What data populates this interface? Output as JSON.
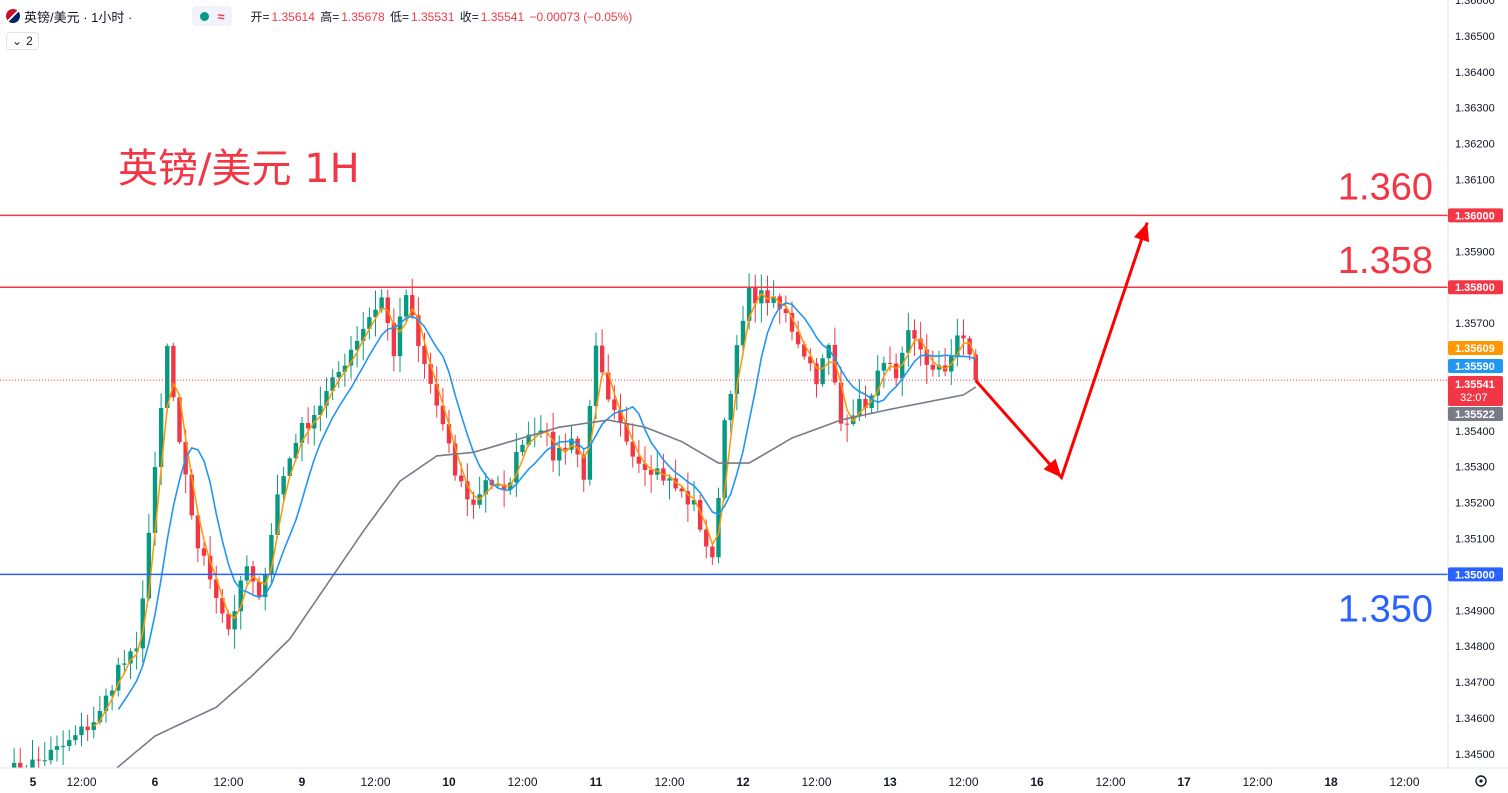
{
  "header": {
    "symbol_title": "英镑/美元 · 1小时 ·",
    "approx_icon": "≈",
    "ohlc": {
      "open_label": "开=",
      "open": "1.35614",
      "high_label": "高=",
      "high": "1.35678",
      "low_label": "低=",
      "low": "1.35531",
      "close_label": "收=",
      "close": "1.35541",
      "change": "−0.00073 (−0.05%)"
    },
    "indicator_badge": "2"
  },
  "colors": {
    "up": "#089981",
    "down": "#f23645",
    "ma_fast": "#ff9800",
    "ma_mid": "#2196f3",
    "ma_slow": "#787b86",
    "resistance": "#f23645",
    "support": "#2962ff",
    "arrow": "#ff0000"
  },
  "chart_data": {
    "type": "candlestick",
    "title": "英镑/美元 1H",
    "y_axis": {
      "min": 1.3445,
      "max": 1.366,
      "ticks": [
        "1.36600",
        "1.36500",
        "1.36400",
        "1.36300",
        "1.36200",
        "1.36100",
        "1.35900",
        "1.35700",
        "1.35400",
        "1.35300",
        "1.35200",
        "1.35100",
        "1.34900",
        "1.34800",
        "1.34700",
        "1.34600",
        "1.34500"
      ]
    },
    "x_axis": {
      "ticks": [
        {
          "label": "5",
          "i": 0
        },
        {
          "label": "12:00",
          "i": 12
        },
        {
          "label": "6",
          "i": 24
        },
        {
          "label": "12:00",
          "i": 36
        },
        {
          "label": "9",
          "i": 48
        },
        {
          "label": "12:00",
          "i": 60
        },
        {
          "label": "10",
          "i": 72
        },
        {
          "label": "12:00",
          "i": 84
        },
        {
          "label": "11",
          "i": 96
        },
        {
          "label": "12:00",
          "i": 108
        },
        {
          "label": "12",
          "i": 120
        },
        {
          "label": "12:00",
          "i": 132
        },
        {
          "label": "13",
          "i": 144
        },
        {
          "label": "12:00",
          "i": 156
        },
        {
          "label": "16",
          "i": 168
        },
        {
          "label": "12:00",
          "i": 180
        },
        {
          "label": "17",
          "i": 192
        },
        {
          "label": "12:00",
          "i": 204
        },
        {
          "label": "18",
          "i": 216
        },
        {
          "label": "12:00",
          "i": 228
        }
      ]
    },
    "horizontal_levels": [
      {
        "price": 1.36,
        "label": "1.360",
        "axis_tag": "1.36000",
        "color": "#f23645"
      },
      {
        "price": 1.358,
        "label": "1.358",
        "axis_tag": "1.35800",
        "color": "#f23645"
      },
      {
        "price": 1.35,
        "label": "1.350",
        "axis_tag": "1.35000",
        "color": "#2962ff"
      }
    ],
    "current_price": {
      "price": 1.35541,
      "axis_tag": "1.35541",
      "countdown": "32:07"
    },
    "ma_tags": [
      {
        "price": 1.35609,
        "text": "1.35609",
        "color": "#ff9800"
      },
      {
        "price": 1.3559,
        "text": "1.35590",
        "color": "#2196f3"
      },
      {
        "price": 1.35522,
        "text": "1.35522",
        "color": "#787b86"
      }
    ],
    "anchors": [
      [
        0,
        1.3445
      ],
      [
        5,
        1.3448
      ],
      [
        10,
        1.3453
      ],
      [
        15,
        1.3461
      ],
      [
        18,
        1.3474
      ],
      [
        21,
        1.3478
      ],
      [
        22,
        1.3495
      ],
      [
        24,
        1.3528
      ],
      [
        26,
        1.3563
      ],
      [
        28,
        1.3535
      ],
      [
        31,
        1.3508
      ],
      [
        34,
        1.3495
      ],
      [
        36,
        1.3485
      ],
      [
        39,
        1.3502
      ],
      [
        41,
        1.3492
      ],
      [
        44,
        1.3522
      ],
      [
        47,
        1.3538
      ],
      [
        50,
        1.3545
      ],
      [
        53,
        1.3553
      ],
      [
        56,
        1.3563
      ],
      [
        59,
        1.3572
      ],
      [
        61,
        1.3577
      ],
      [
        63,
        1.3562
      ],
      [
        65,
        1.3578
      ],
      [
        67,
        1.3563
      ],
      [
        69,
        1.3553
      ],
      [
        71,
        1.3541
      ],
      [
        73,
        1.3528
      ],
      [
        76,
        1.3519
      ],
      [
        78,
        1.3527
      ],
      [
        81,
        1.3522
      ],
      [
        84,
        1.3538
      ],
      [
        87,
        1.3542
      ],
      [
        89,
        1.3533
      ],
      [
        92,
        1.3538
      ],
      [
        94,
        1.3528
      ],
      [
        96,
        1.3562
      ],
      [
        98,
        1.3547
      ],
      [
        101,
        1.3538
      ],
      [
        103,
        1.3532
      ],
      [
        106,
        1.3529
      ],
      [
        109,
        1.3524
      ],
      [
        112,
        1.3519
      ],
      [
        115,
        1.3503
      ],
      [
        117,
        1.3543
      ],
      [
        119,
        1.3562
      ],
      [
        121,
        1.3578
      ],
      [
        124,
        1.3577
      ],
      [
        127,
        1.3572
      ],
      [
        130,
        1.3562
      ],
      [
        132,
        1.3555
      ],
      [
        134,
        1.3563
      ],
      [
        136,
        1.3542
      ],
      [
        138,
        1.3546
      ],
      [
        141,
        1.3549
      ],
      [
        143,
        1.3561
      ],
      [
        145,
        1.3553
      ],
      [
        147,
        1.3566
      ],
      [
        149,
        1.3563
      ],
      [
        151,
        1.3556
      ],
      [
        153,
        1.3557
      ],
      [
        155,
        1.3567
      ],
      [
        157,
        1.3561
      ],
      [
        158,
        1.35541
      ]
    ],
    "ma_slow_anchors": [
      [
        17,
        1.3445
      ],
      [
        24,
        1.3455
      ],
      [
        34,
        1.3463
      ],
      [
        40,
        1.3472
      ],
      [
        46,
        1.3482
      ],
      [
        52,
        1.3497
      ],
      [
        58,
        1.3512
      ],
      [
        64,
        1.3526
      ],
      [
        70,
        1.3533
      ],
      [
        76,
        1.3534
      ],
      [
        82,
        1.3537
      ],
      [
        90,
        1.3541
      ],
      [
        98,
        1.3543
      ],
      [
        104,
        1.3541
      ],
      [
        110,
        1.3537
      ],
      [
        116,
        1.3531
      ],
      [
        121,
        1.3531
      ],
      [
        128,
        1.3538
      ],
      [
        136,
        1.3543
      ],
      [
        144,
        1.3546
      ],
      [
        150,
        1.3548
      ],
      [
        156,
        1.355
      ],
      [
        158,
        1.35522
      ]
    ],
    "forecast_path": [
      [
        158,
        1.3554
      ],
      [
        172,
        1.3527
      ],
      [
        186,
        1.3598
      ]
    ],
    "candle_count": 159
  },
  "annotations": {
    "pair_label": "英镑/美元 1H"
  }
}
